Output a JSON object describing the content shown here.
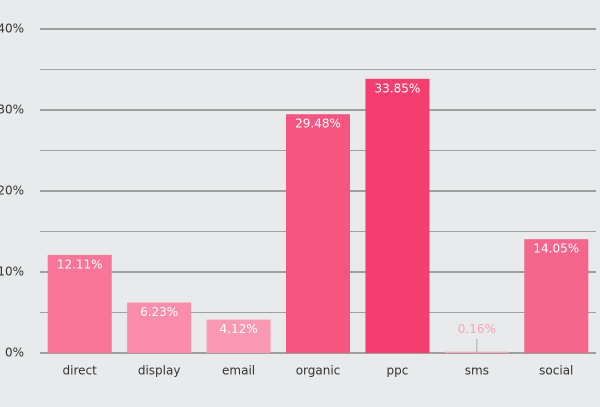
{
  "chart_data": {
    "type": "bar",
    "categories": [
      "direct",
      "display",
      "email",
      "organic",
      "ppc",
      "sms",
      "social"
    ],
    "values": [
      12.11,
      6.23,
      4.12,
      29.48,
      33.85,
      0.16,
      14.05
    ],
    "value_labels": [
      "12.11%",
      "6.23%",
      "4.12%",
      "29.48%",
      "33.85%",
      "0.16%",
      "14.05%"
    ],
    "colors": [
      "#f87598",
      "#fa8dab",
      "#fb99b4",
      "#f5557f",
      "#f43e6f",
      "#f9a3bb",
      "#f6658c"
    ],
    "ylim": [
      0,
      40
    ],
    "yticks": [
      {
        "value": 0,
        "label": "0%"
      },
      {
        "value": 10,
        "label": "10%"
      },
      {
        "value": 20,
        "label": "20%"
      },
      {
        "value": 30,
        "label": "30%"
      },
      {
        "value": 40,
        "label": "40%"
      }
    ],
    "minor_yticks": [
      5,
      15,
      25,
      35
    ],
    "grid": true
  }
}
